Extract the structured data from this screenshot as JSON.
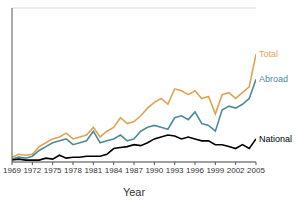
{
  "chart_data": {
    "type": "line",
    "xlabel": "Year",
    "x": [
      1969,
      1970,
      1971,
      1972,
      1973,
      1974,
      1975,
      1976,
      1977,
      1978,
      1979,
      1980,
      1981,
      1982,
      1983,
      1984,
      1985,
      1986,
      1987,
      1988,
      1989,
      1990,
      1991,
      1992,
      1993,
      1994,
      1995,
      1996,
      1997,
      1998,
      1999,
      2000,
      2001,
      2002,
      2003,
      2004,
      2005
    ],
    "xlim": [
      1969,
      2005
    ],
    "xticks": [
      1969,
      1972,
      1975,
      1978,
      1981,
      1984,
      1987,
      1990,
      1993,
      1996,
      1999,
      2002,
      2005
    ],
    "ylim": [
      0,
      8
    ],
    "yticks": [
      0,
      1,
      2,
      3,
      4,
      5,
      6,
      7,
      8
    ],
    "grid": true,
    "tick_labels": "x",
    "series": [
      {
        "name": "Total",
        "color": "#e0a352",
        "values": [
          0.25,
          0.4,
          0.35,
          0.4,
          0.8,
          1.0,
          1.2,
          1.3,
          1.5,
          1.2,
          1.3,
          1.4,
          1.8,
          1.3,
          1.6,
          1.8,
          2.3,
          2.0,
          2.1,
          2.4,
          2.8,
          3.1,
          3.3,
          3.0,
          3.8,
          3.7,
          3.5,
          3.7,
          3.3,
          3.4,
          2.5,
          3.5,
          3.6,
          3.3,
          3.6,
          3.9,
          5.6
        ]
      },
      {
        "name": "Abroad",
        "color": "#4f8a9c",
        "values": [
          0.15,
          0.25,
          0.2,
          0.3,
          0.6,
          0.8,
          1.0,
          1.1,
          1.2,
          0.9,
          1.0,
          1.1,
          1.6,
          1.0,
          1.1,
          1.2,
          1.4,
          1.1,
          1.2,
          1.6,
          1.8,
          1.9,
          1.8,
          1.7,
          2.3,
          2.4,
          2.2,
          2.6,
          2.0,
          1.9,
          1.6,
          2.7,
          2.9,
          2.8,
          3.0,
          3.3,
          4.3
        ]
      },
      {
        "name": "National",
        "color": "#000000",
        "values": [
          0.1,
          0.15,
          0.1,
          0.1,
          0.1,
          0.2,
          0.15,
          0.35,
          0.2,
          0.25,
          0.25,
          0.3,
          0.3,
          0.3,
          0.4,
          0.7,
          0.75,
          0.8,
          0.9,
          0.85,
          1.0,
          1.2,
          1.3,
          1.4,
          1.35,
          1.2,
          1.3,
          1.2,
          1.1,
          1.1,
          0.9,
          0.9,
          0.8,
          0.7,
          0.9,
          0.7,
          1.2
        ]
      }
    ]
  }
}
